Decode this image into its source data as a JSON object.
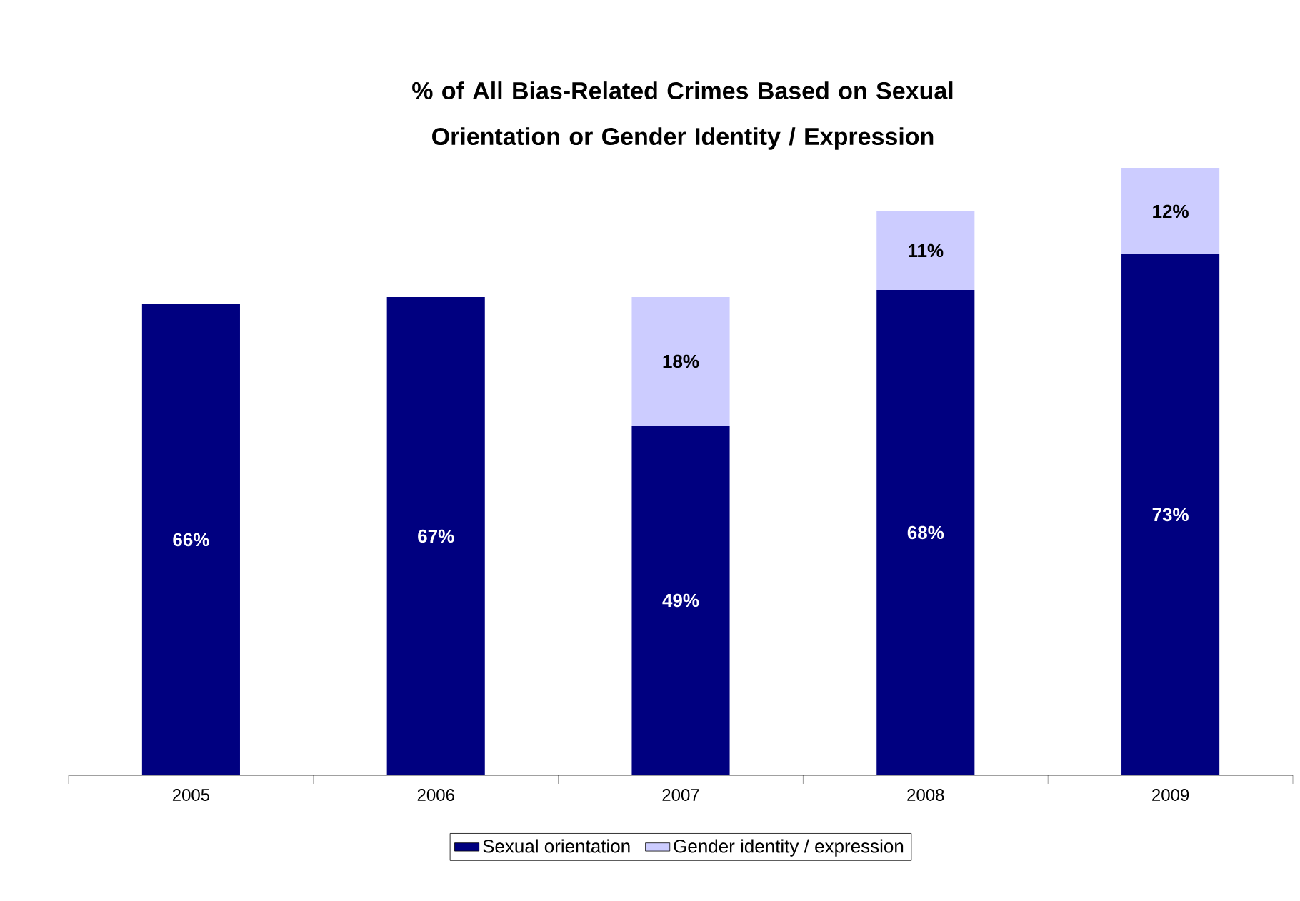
{
  "chart_data": {
    "type": "bar",
    "stacked": true,
    "title": "% of All Bias-Related Crimes Based on Sexual Orientation or Gender Identity / Expression",
    "categories": [
      "2005",
      "2006",
      "2007",
      "2008",
      "2009"
    ],
    "series": [
      {
        "name": "Sexual orientation",
        "color": "#000080",
        "values": [
          66,
          67,
          49,
          68,
          73
        ],
        "value_labels": [
          "66%",
          "67%",
          "49%",
          "68%",
          "73%"
        ]
      },
      {
        "name": "Gender identity / expression",
        "color": "#ccccff",
        "values": [
          null,
          null,
          18,
          11,
          12
        ],
        "value_labels": [
          null,
          null,
          "18%",
          "11%",
          "12%"
        ]
      }
    ],
    "legend": "bottom"
  }
}
